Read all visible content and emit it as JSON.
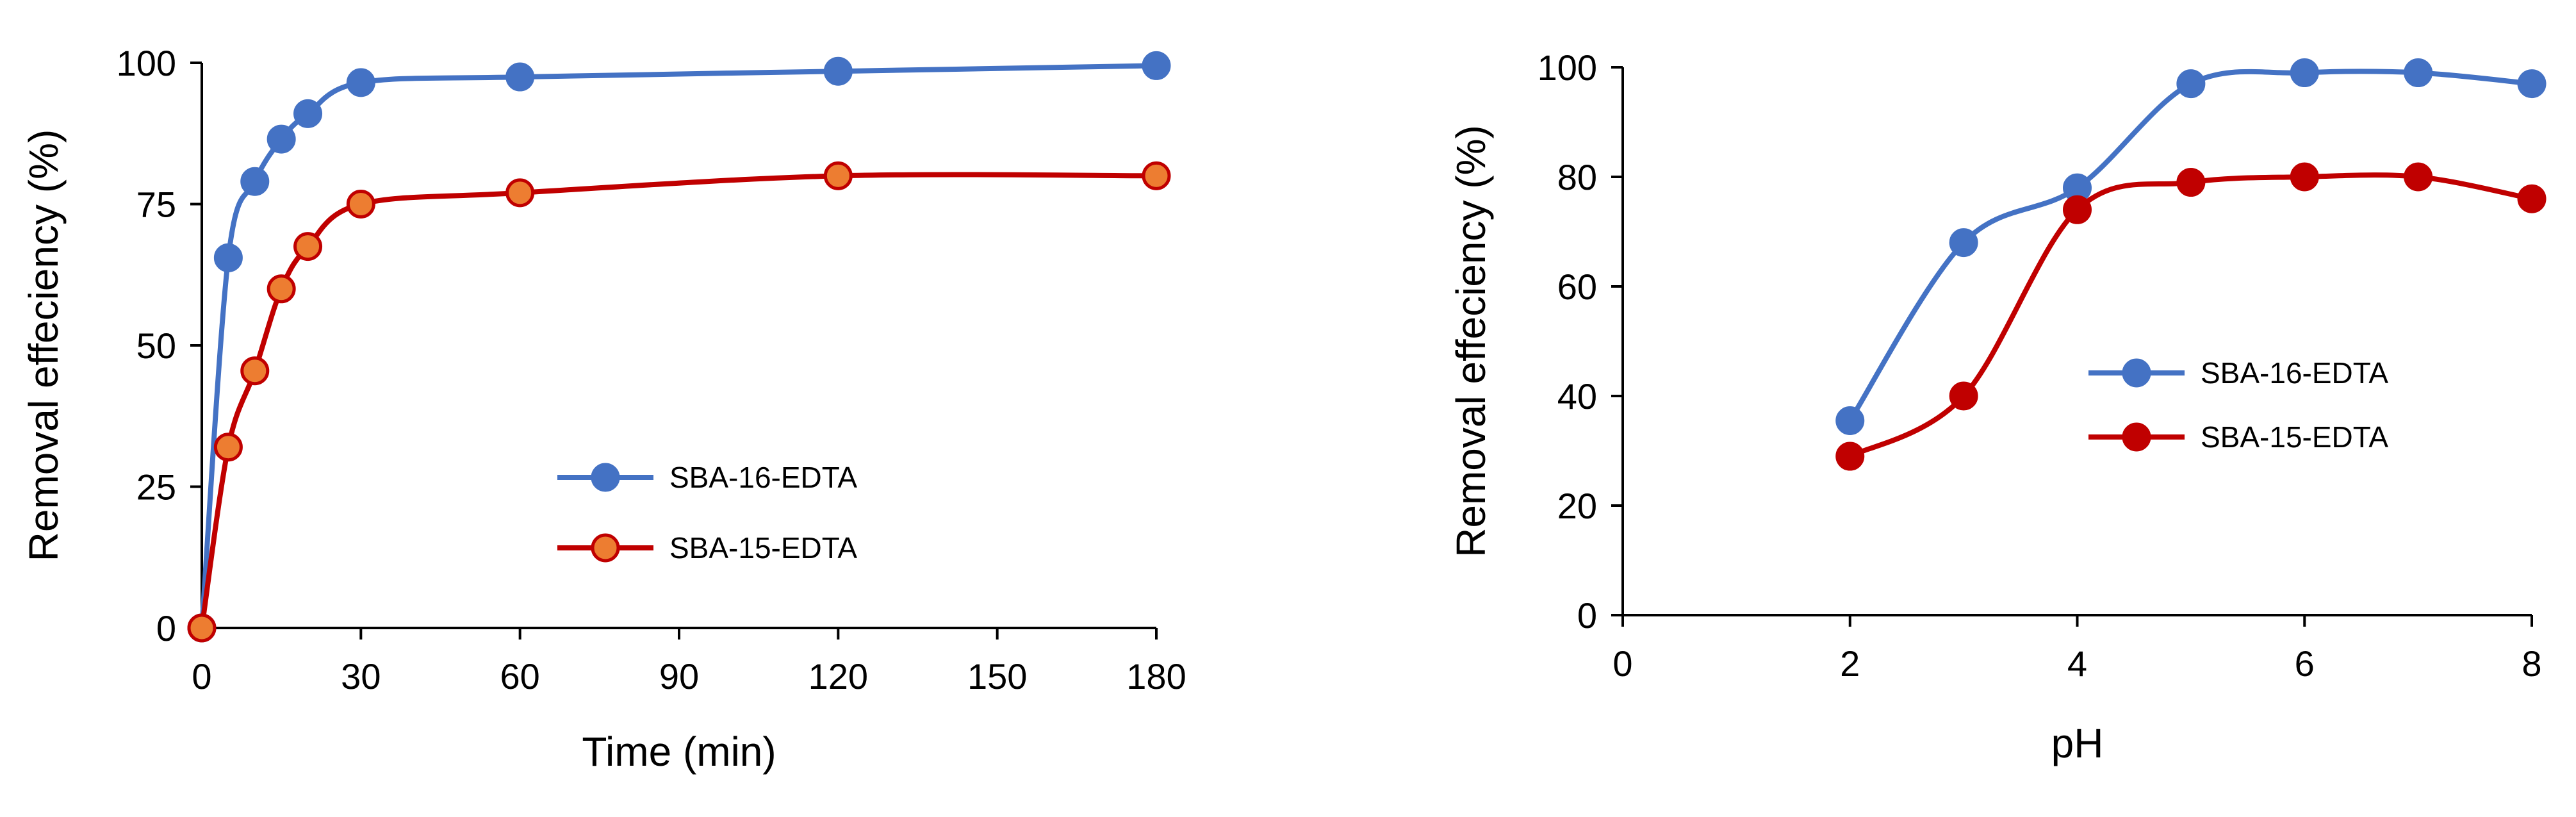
{
  "colors": {
    "blue": "#4472C4",
    "red": "#C00000",
    "red_marker_fill": "#ED7D31",
    "axis": "#000000"
  },
  "chart_data": [
    {
      "type": "line",
      "xlabel": "Time (min)",
      "ylabel": "Removal effeciency (%)",
      "xlim": [
        0,
        180
      ],
      "ylim": [
        0,
        100
      ],
      "xticks": [
        "0",
        "30",
        "60",
        "90",
        "120",
        "150",
        "180"
      ],
      "yticks": [
        "0",
        "25",
        "50",
        "75",
        "100"
      ],
      "grid": false,
      "smooth": true,
      "legend": "center-right",
      "series": [
        {
          "name": "SBA-16-EDTA",
          "color": "#4472C4",
          "marker_fill": "#4472C4",
          "points": [
            [
              0,
              0
            ],
            [
              5,
              65.5
            ],
            [
              10,
              79
            ],
            [
              15,
              86.5
            ],
            [
              20,
              91
            ],
            [
              30,
              96.5
            ],
            [
              60,
              97.5
            ],
            [
              120,
              98.5
            ],
            [
              180,
              99.5
            ]
          ]
        },
        {
          "name": "SBA-15-EDTA",
          "color": "#C00000",
          "marker_fill": "#ED7D31",
          "points": [
            [
              0,
              0
            ],
            [
              5,
              32
            ],
            [
              10,
              45.5
            ],
            [
              15,
              60
            ],
            [
              20,
              67.5
            ],
            [
              30,
              75
            ],
            [
              60,
              77
            ],
            [
              120,
              80
            ],
            [
              180,
              80
            ]
          ]
        }
      ]
    },
    {
      "type": "line",
      "xlabel": "pH",
      "ylabel": "Removal effeciency (%)",
      "xlim": [
        0,
        8
      ],
      "ylim": [
        0,
        100
      ],
      "xticks": [
        "0",
        "2",
        "4",
        "6",
        "8"
      ],
      "yticks": [
        "0",
        "20",
        "40",
        "60",
        "80",
        "100"
      ],
      "grid": false,
      "smooth": true,
      "legend": "center-right",
      "series": [
        {
          "name": "SBA-16-EDTA",
          "color": "#4472C4",
          "marker_fill": "#4472C4",
          "points": [
            [
              2,
              35.5
            ],
            [
              3,
              68
            ],
            [
              4,
              78
            ],
            [
              5,
              97
            ],
            [
              6,
              99
            ],
            [
              7,
              99
            ],
            [
              8,
              97
            ]
          ]
        },
        {
          "name": "SBA-15-EDTA",
          "color": "#C00000",
          "marker_fill": "#C00000",
          "points": [
            [
              2,
              29
            ],
            [
              3,
              40
            ],
            [
              4,
              74
            ],
            [
              5,
              79
            ],
            [
              6,
              80
            ],
            [
              7,
              80
            ],
            [
              8,
              76
            ]
          ]
        }
      ]
    }
  ]
}
